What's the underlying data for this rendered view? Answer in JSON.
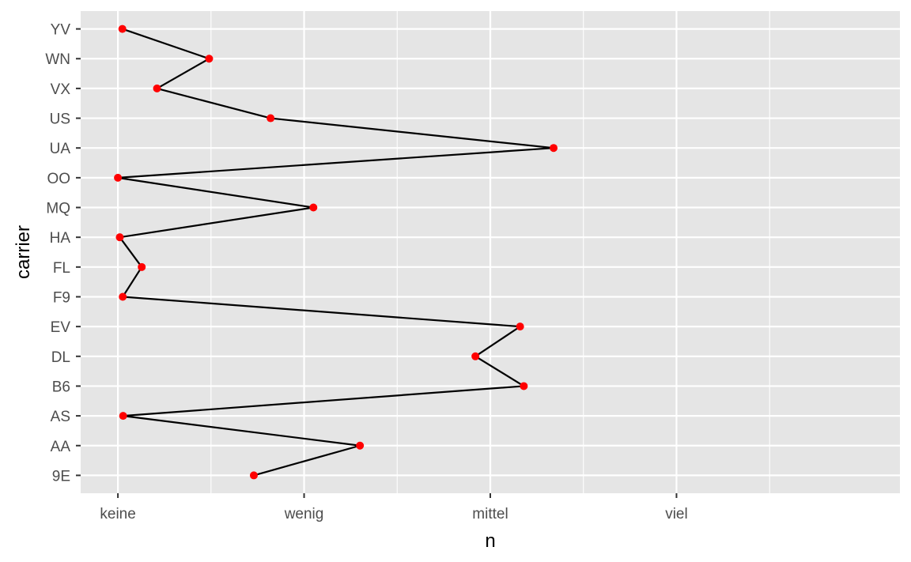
{
  "chart_data": {
    "type": "scatter",
    "title": "",
    "xlabel": "n",
    "ylabel": "carrier",
    "x_ticks": [
      {
        "label": "keine",
        "value": 0
      },
      {
        "label": "wenig",
        "value": 10000
      },
      {
        "label": "mittel",
        "value": 20000
      },
      {
        "label": "viel",
        "value": 30000
      }
    ],
    "xlim": [
      -2000,
      42000
    ],
    "categories": [
      "9E",
      "AA",
      "AS",
      "B6",
      "DL",
      "EV",
      "F9",
      "FL",
      "HA",
      "MQ",
      "OO",
      "UA",
      "US",
      "VX",
      "WN",
      "YV"
    ],
    "line_order": [
      "9E",
      "AA",
      "AS",
      "B6",
      "DL",
      "EV",
      "F9",
      "FL",
      "HA",
      "MQ",
      "OO",
      "UA",
      "US",
      "VX",
      "WN",
      "YV"
    ],
    "series": [
      {
        "points": [
          {
            "carrier": "9E",
            "n": 7300
          },
          {
            "carrier": "AA",
            "n": 13000
          },
          {
            "carrier": "AS",
            "n": 280
          },
          {
            "carrier": "B6",
            "n": 21800
          },
          {
            "carrier": "DL",
            "n": 19200
          },
          {
            "carrier": "EV",
            "n": 21600
          },
          {
            "carrier": "F9",
            "n": 260
          },
          {
            "carrier": "FL",
            "n": 1280
          },
          {
            "carrier": "HA",
            "n": 100
          },
          {
            "carrier": "MQ",
            "n": 10500
          },
          {
            "carrier": "OO",
            "n": 0
          },
          {
            "carrier": "UA",
            "n": 23400
          },
          {
            "carrier": "US",
            "n": 8200
          },
          {
            "carrier": "VX",
            "n": 2100
          },
          {
            "carrier": "WN",
            "n": 4900
          },
          {
            "carrier": "YV",
            "n": 240
          }
        ]
      }
    ],
    "grid": true,
    "colors": {
      "panel": "#e5e5e5",
      "grid_major": "#ffffff",
      "point": "#ff0000",
      "line": "#000000",
      "tick_text": "#4d4d4d"
    }
  }
}
